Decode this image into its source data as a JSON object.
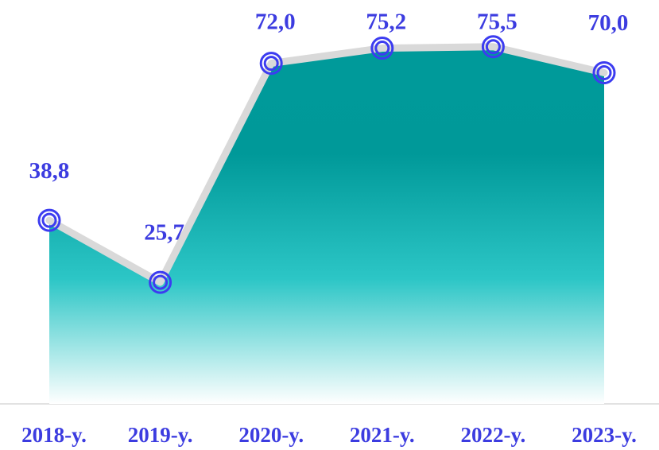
{
  "chart_data": {
    "type": "area",
    "categories": [
      "2018-y.",
      "2019-y.",
      "2020-y.",
      "2021-y.",
      "2022-y.",
      "2023-y."
    ],
    "values": [
      38.8,
      25.7,
      72.0,
      75.2,
      75.5,
      70.0
    ],
    "value_labels": [
      "38,8",
      "25,7",
      "72,0",
      "75,2",
      "75,5",
      "70,0"
    ],
    "ylim": [
      0,
      80
    ],
    "color": "#009999",
    "line_color": "#d9d9d9",
    "marker_color": "#3c3cf0"
  }
}
